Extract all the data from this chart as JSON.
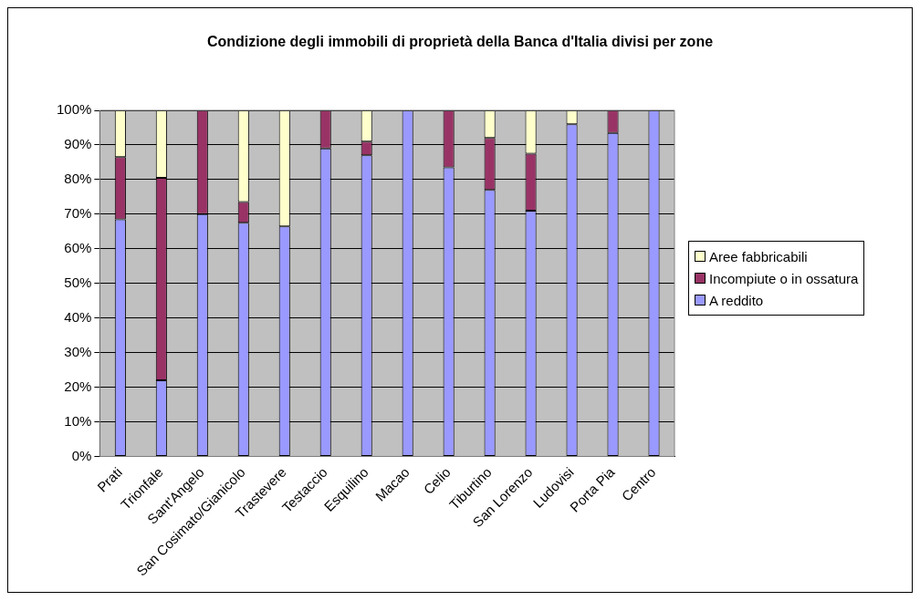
{
  "chart_data": {
    "type": "bar",
    "title": "Condizione degli immobili di proprietà della Banca d'Italia divisi per zone",
    "categories": [
      "Prati",
      "Trionfale",
      "Sant'Angelo",
      "San Cosimato/Gianicolo",
      "Trastevere",
      "Testaccio",
      "Esquilino",
      "Macao",
      "Celio",
      "Tiburtino",
      "San Lorenzo",
      "Ludovisi",
      "Porta Pia",
      "Centro"
    ],
    "series": [
      {
        "name": "A reddito",
        "color": "#9999ff",
        "values": [
          68.5,
          22,
          70,
          67.5,
          66.5,
          89,
          87,
          100,
          83.5,
          77,
          71,
          96,
          93.5,
          100
        ]
      },
      {
        "name": "Incompiute o in ossatura",
        "color": "#993366",
        "values": [
          18,
          58.5,
          30,
          6,
          0,
          11,
          4,
          0,
          16.5,
          15,
          16.5,
          0,
          6.5,
          0
        ]
      },
      {
        "name": "Aree fabbricabili",
        "color": "#ffffcc",
        "values": [
          13.5,
          19.5,
          0,
          26.5,
          33.5,
          0,
          9,
          0,
          0,
          8,
          12.5,
          4,
          0,
          0
        ]
      }
    ],
    "stacked": true,
    "ylim": [
      0,
      100
    ],
    "yticks": [
      {
        "value": 0,
        "label": "0%"
      },
      {
        "value": 10,
        "label": "10%"
      },
      {
        "value": 20,
        "label": "20%"
      },
      {
        "value": 30,
        "label": "30%"
      },
      {
        "value": 40,
        "label": "40%"
      },
      {
        "value": 50,
        "label": "50%"
      },
      {
        "value": 60,
        "label": "60%"
      },
      {
        "value": 70,
        "label": "70%"
      },
      {
        "value": 80,
        "label": "80%"
      },
      {
        "value": 90,
        "label": "90%"
      },
      {
        "value": 100,
        "label": "100%"
      }
    ],
    "grid": "y",
    "legend": "right"
  }
}
